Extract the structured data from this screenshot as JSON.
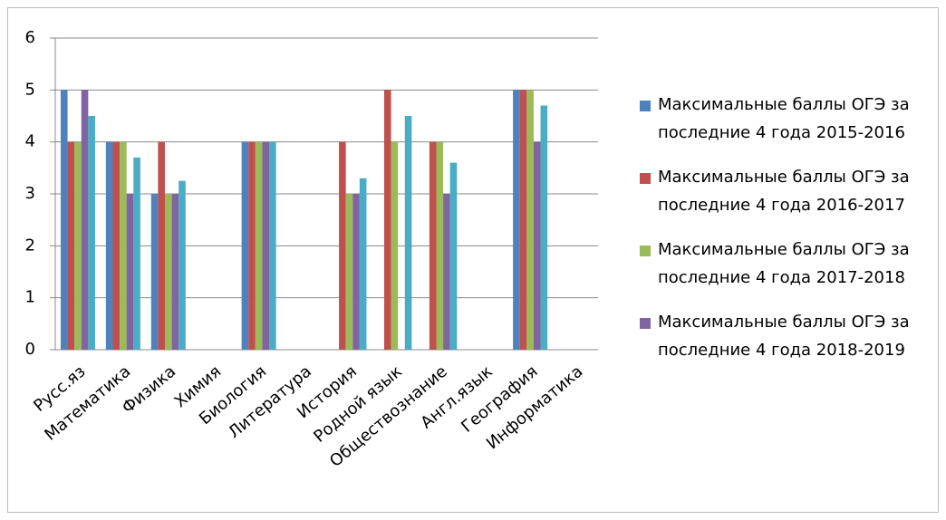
{
  "chart_data": {
    "type": "bar",
    "categories": [
      "Русс.яз",
      "Математика",
      "Физика",
      "Химия",
      "Биология",
      "Литература",
      "История",
      "Родной язык",
      "Обществознание",
      "Англ.язык",
      "География",
      "Информатика"
    ],
    "series": [
      {
        "name": "Максимальные баллы ОГЭ за последние 4 года 2015-2016",
        "color": "#4f81bd",
        "values": [
          5,
          4,
          3,
          null,
          4,
          null,
          null,
          null,
          null,
          null,
          5,
          null
        ]
      },
      {
        "name": "Максимальные баллы ОГЭ за последние 4 года 2016-2017",
        "color": "#c0504d",
        "values": [
          4,
          4,
          4,
          null,
          4,
          null,
          4,
          5,
          4,
          null,
          5,
          null
        ]
      },
      {
        "name": "Максимальные баллы ОГЭ за последние 4 года 2017-2018",
        "color": "#9bbb59",
        "values": [
          4,
          4,
          3,
          null,
          4,
          null,
          3,
          4,
          4,
          null,
          5,
          null
        ]
      },
      {
        "name": "Максимальные баллы ОГЭ за последние 4 года 2018-2019",
        "color": "#8064a2",
        "values": [
          5,
          3,
          3,
          null,
          4,
          null,
          3,
          null,
          3,
          null,
          4,
          null
        ]
      },
      {
        "color": "#4bacc6",
        "values": [
          4.5,
          3.7,
          3.25,
          null,
          4,
          null,
          3.3,
          4.5,
          3.6,
          null,
          4.7,
          null
        ]
      }
    ],
    "ylim": [
      0,
      6
    ],
    "yticks": [
      0,
      1,
      2,
      3,
      4,
      5,
      6
    ],
    "grid": true,
    "legend": "right"
  }
}
